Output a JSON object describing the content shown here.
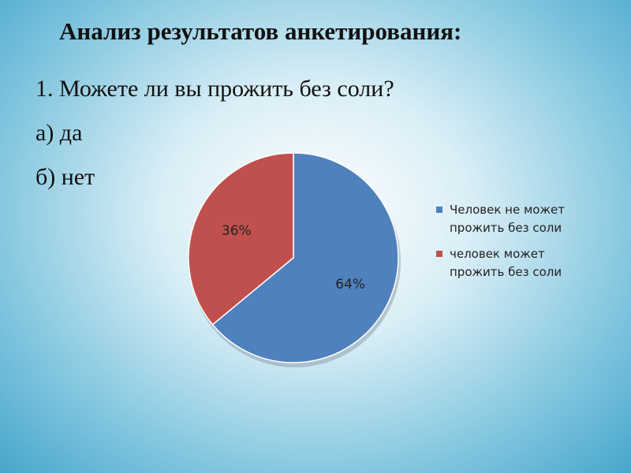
{
  "slide": {
    "title": "Анализ результатов анкетирования:",
    "lines": [
      "1. Можете ли вы прожить без соли?",
      "а) да",
      "б) нет"
    ]
  },
  "chart_data": {
    "type": "pie",
    "categories": [
      "Человек не может прожить без соли",
      "человек может прожить без соли"
    ],
    "values": [
      64,
      36
    ],
    "value_labels": [
      "64%",
      "36%"
    ],
    "colors": [
      "#4f81bd",
      "#c0504d"
    ],
    "legend": "right"
  }
}
